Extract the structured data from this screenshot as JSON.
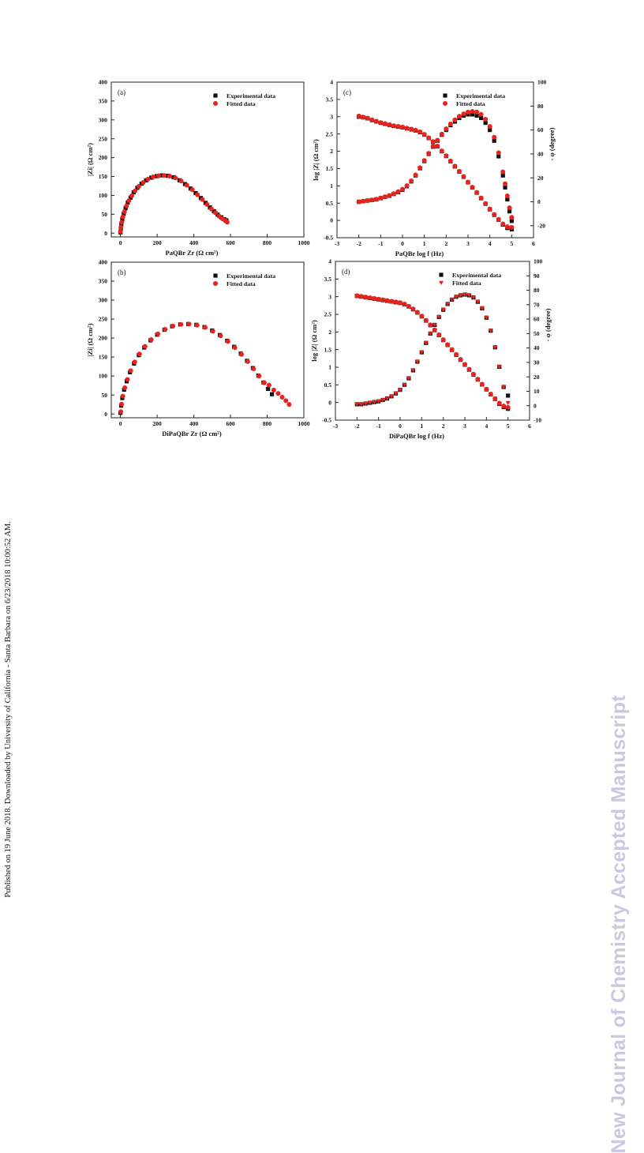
{
  "side_note": "Published on 19 June 2018. Downloaded by University of California - Santa Barbara on 6/23/2018 10:00:52 AM.",
  "watermark": "New Journal of Chemistry Accepted Manuscript",
  "colors": {
    "experimental": "#111111",
    "fitted": "#e8221c",
    "axis": "#222222"
  },
  "chart_data": [
    {
      "panel": "(a)",
      "type": "scatter",
      "x_label_prefix": "PaQBr",
      "xlabel": "Zr (Ω cm²)",
      "ylabel": "|Zi| (Ω cm²)",
      "xlim": [
        -50,
        1000
      ],
      "ylim": [
        -10,
        400
      ],
      "xticks": [
        0,
        200,
        400,
        600,
        800,
        1000
      ],
      "yticks": [
        0,
        50,
        100,
        150,
        200,
        250,
        300,
        350,
        400
      ],
      "legend": {
        "position": "top-right",
        "entries": [
          "Experimental data",
          "Fitted data"
        ]
      },
      "series": [
        {
          "name": "Experimental data",
          "marker": "square",
          "x": [
            0,
            2,
            5,
            10,
            18,
            28,
            40,
            55,
            72,
            92,
            115,
            140,
            168,
            198,
            228,
            258,
            290,
            322,
            352,
            382,
            410,
            438,
            464,
            488,
            510,
            530,
            550,
            566,
            578
          ],
          "y": [
            2,
            12,
            24,
            37,
            51,
            66,
            81,
            94,
            108,
            120,
            131,
            140,
            147,
            151,
            153,
            152,
            148,
            140,
            130,
            118,
            106,
            93,
            80,
            68,
            58,
            49,
            42,
            37,
            34
          ]
        },
        {
          "name": "Fitted data",
          "marker": "circle",
          "x": [
            0,
            3,
            7,
            13,
            22,
            33,
            46,
            62,
            80,
            100,
            124,
            150,
            178,
            208,
            238,
            268,
            300,
            331,
            362,
            392,
            420,
            447,
            472,
            496,
            518,
            538,
            556,
            572,
            582
          ],
          "y": [
            4,
            16,
            29,
            43,
            57,
            72,
            86,
            99,
            112,
            124,
            134,
            143,
            149,
            152,
            153,
            151,
            146,
            138,
            127,
            115,
            102,
            89,
            76,
            64,
            54,
            45,
            38,
            33,
            29
          ]
        }
      ]
    },
    {
      "panel": "(b)",
      "type": "scatter",
      "x_label_prefix": "DiPaQBr",
      "xlabel": "Zr (Ω cm²)",
      "ylabel": "|Zi| (Ω cm²)",
      "xlim": [
        -50,
        1000
      ],
      "ylim": [
        -10,
        400
      ],
      "xticks": [
        0,
        200,
        400,
        600,
        800,
        1000
      ],
      "yticks": [
        0,
        50,
        100,
        150,
        200,
        250,
        300,
        350,
        400
      ],
      "legend": {
        "position": "top-right",
        "entries": [
          "Experimental data",
          "Fitted data"
        ]
      },
      "series": [
        {
          "name": "Experimental data",
          "marker": "square",
          "x": [
            0,
            4,
            10,
            20,
            34,
            52,
            74,
            100,
            130,
            164,
            200,
            240,
            282,
            326,
            370,
            414,
            458,
            500,
            542,
            582,
            620,
            656,
            690,
            722,
            752,
            780,
            805,
            826
          ],
          "y": [
            3,
            22,
            42,
            64,
            86,
            110,
            133,
            155,
            175,
            194,
            209,
            222,
            231,
            236,
            237,
            235,
            229,
            220,
            208,
            193,
            177,
            159,
            140,
            121,
            101,
            83,
            66,
            52
          ]
        },
        {
          "name": "Fitted data",
          "marker": "circle",
          "x": [
            2,
            6,
            13,
            24,
            38,
            56,
            78,
            104,
            134,
            168,
            204,
            244,
            286,
            330,
            374,
            418,
            462,
            504,
            546,
            586,
            624,
            660,
            694,
            726,
            756,
            784,
            810,
            836,
            860,
            882,
            902,
            920
          ],
          "y": [
            6,
            26,
            47,
            69,
            91,
            114,
            137,
            158,
            178,
            196,
            211,
            223,
            232,
            236,
            237,
            234,
            228,
            218,
            206,
            191,
            175,
            157,
            138,
            119,
            100,
            82,
            76,
            63,
            54,
            44,
            35,
            25
          ]
        }
      ]
    },
    {
      "panel": "(c)",
      "type": "scatter",
      "x_label_prefix": "PaQBr",
      "xlabel": "log f (Hz)",
      "ylabel": "log |Z| (Ω cm²)",
      "y2label": "- φ (degree)",
      "xlim": [
        -3,
        6
      ],
      "ylim": [
        -0.5,
        4.0
      ],
      "y2lim": [
        -30,
        100
      ],
      "xticks": [
        -3,
        -2,
        -1,
        0,
        1,
        2,
        3,
        4,
        5,
        6
      ],
      "yticks": [
        -0.5,
        0.0,
        0.5,
        1.0,
        1.5,
        2.0,
        2.5,
        3.0,
        3.5,
        4.0
      ],
      "y2ticks": [
        -20,
        0,
        20,
        40,
        60,
        80,
        100
      ],
      "legend": {
        "position": "top-right",
        "entries": [
          "Experimental data",
          "Fitted data"
        ]
      },
      "series": [
        {
          "name": "Experimental data",
          "axis": "left",
          "marker": "square",
          "x": [
            -2.0,
            -1.8,
            -1.6,
            -1.4,
            -1.2,
            -1.0,
            -0.8,
            -0.6,
            -0.4,
            -0.2,
            0.0,
            0.2,
            0.4,
            0.6,
            0.8,
            1.0,
            1.2,
            1.4,
            1.6,
            1.8,
            2.0,
            2.2,
            2.4,
            2.6,
            2.8,
            3.0,
            3.2,
            3.4,
            3.6,
            3.8,
            4.0,
            4.2,
            4.4,
            4.6,
            4.8,
            5.0
          ],
          "y": [
            3.0,
            2.98,
            2.95,
            2.9,
            2.86,
            2.82,
            2.79,
            2.76,
            2.73,
            2.71,
            2.69,
            2.66,
            2.63,
            2.6,
            2.55,
            2.48,
            2.38,
            2.27,
            2.14,
            2.0,
            1.86,
            1.71,
            1.56,
            1.41,
            1.26,
            1.1,
            0.95,
            0.8,
            0.64,
            0.48,
            0.32,
            0.16,
            0.02,
            -0.12,
            -0.22,
            -0.26
          ]
        },
        {
          "name": "Fitted data",
          "axis": "left",
          "marker": "circle",
          "x": [
            -2.0,
            -1.8,
            -1.6,
            -1.4,
            -1.2,
            -1.0,
            -0.8,
            -0.6,
            -0.4,
            -0.2,
            0.0,
            0.2,
            0.4,
            0.6,
            0.8,
            1.0,
            1.2,
            1.4,
            1.6,
            1.8,
            2.0,
            2.2,
            2.4,
            2.6,
            2.8,
            3.0,
            3.2,
            3.4,
            3.6,
            3.8,
            4.0,
            4.2,
            4.4,
            4.6,
            4.8,
            5.0
          ],
          "y": [
            3.02,
            2.99,
            2.96,
            2.91,
            2.87,
            2.83,
            2.8,
            2.77,
            2.74,
            2.72,
            2.7,
            2.67,
            2.64,
            2.61,
            2.56,
            2.49,
            2.39,
            2.28,
            2.15,
            2.01,
            1.87,
            1.72,
            1.57,
            1.42,
            1.27,
            1.11,
            0.96,
            0.81,
            0.65,
            0.49,
            0.33,
            0.17,
            0.03,
            -0.1,
            -0.18,
            -0.2
          ]
        },
        {
          "name": "Experimental data",
          "axis": "right",
          "marker": "square",
          "x": [
            -2.0,
            -1.8,
            -1.6,
            -1.4,
            -1.2,
            -1.0,
            -0.8,
            -0.6,
            -0.4,
            -0.2,
            0.0,
            0.2,
            0.4,
            0.6,
            0.8,
            1.0,
            1.2,
            1.4,
            1.6,
            1.8,
            2.0,
            2.2,
            2.4,
            2.6,
            2.8,
            3.0,
            3.2,
            3.4,
            3.6,
            3.8,
            4.0,
            4.2,
            4.4,
            4.6,
            4.7,
            4.8,
            4.9,
            5.0
          ],
          "y": [
            0,
            0.5,
            1,
            1.5,
            2,
            3,
            4,
            5,
            6.5,
            8,
            10,
            13,
            17,
            22,
            28,
            34,
            40,
            46,
            51,
            56,
            60,
            64,
            67,
            70,
            72,
            73,
            73,
            72,
            70,
            66,
            60,
            51,
            38,
            22,
            12,
            2,
            -8,
            -16
          ]
        },
        {
          "name": "Fitted data",
          "axis": "right",
          "marker": "circle",
          "x": [
            -2.0,
            -1.8,
            -1.6,
            -1.4,
            -1.2,
            -1.0,
            -0.8,
            -0.6,
            -0.4,
            -0.2,
            0.0,
            0.2,
            0.4,
            0.6,
            0.8,
            1.0,
            1.2,
            1.4,
            1.6,
            1.8,
            2.0,
            2.2,
            2.4,
            2.6,
            2.8,
            3.0,
            3.2,
            3.4,
            3.6,
            3.8,
            4.0,
            4.2,
            4.4,
            4.6,
            4.7,
            4.8,
            4.9,
            5.0
          ],
          "y": [
            0,
            0.5,
            1,
            1.5,
            2.2,
            3.2,
            4.2,
            5.3,
            6.8,
            8.5,
            10.5,
            13.5,
            17.5,
            22.5,
            28.5,
            34.5,
            40.5,
            46.5,
            51.5,
            56.5,
            61,
            65,
            68.5,
            71.5,
            73.5,
            75,
            75.5,
            75,
            73,
            69,
            63,
            54,
            41,
            25,
            15,
            5,
            -5,
            -13
          ]
        }
      ]
    },
    {
      "panel": "(d)",
      "type": "scatter",
      "x_label_prefix": "DiPaQBr",
      "xlabel": "log f (Hz)",
      "ylabel": "log |Z| (Ω cm²)",
      "y2label": "- φ (degree)",
      "xlim": [
        -3,
        6
      ],
      "ylim": [
        -0.5,
        4.0
      ],
      "y2lim": [
        -10,
        100
      ],
      "xticks": [
        -3,
        -2,
        -1,
        0,
        1,
        2,
        3,
        4,
        5,
        6
      ],
      "yticks": [
        -0.5,
        0.0,
        0.5,
        1.0,
        1.5,
        2.0,
        2.5,
        3.0,
        3.5,
        4.0
      ],
      "y2ticks": [
        -10,
        0,
        10,
        20,
        30,
        40,
        50,
        60,
        70,
        80,
        90,
        100
      ],
      "legend": {
        "position": "top-right",
        "entries": [
          "Experimental data",
          "Fitted data"
        ]
      },
      "series": [
        {
          "name": "Experimental data",
          "axis": "left",
          "marker": "square",
          "x": [
            -2.0,
            -1.8,
            -1.6,
            -1.4,
            -1.2,
            -1.0,
            -0.8,
            -0.6,
            -0.4,
            -0.2,
            0.0,
            0.2,
            0.4,
            0.6,
            0.8,
            1.0,
            1.2,
            1.4,
            1.6,
            1.8,
            2.0,
            2.2,
            2.4,
            2.6,
            2.8,
            3.0,
            3.2,
            3.4,
            3.6,
            3.8,
            4.0,
            4.2,
            4.4,
            4.6,
            4.8,
            5.0
          ],
          "y": [
            3.02,
            3.0,
            2.98,
            2.96,
            2.94,
            2.92,
            2.9,
            2.88,
            2.86,
            2.84,
            2.82,
            2.78,
            2.72,
            2.64,
            2.55,
            2.44,
            2.32,
            2.19,
            2.05,
            1.91,
            1.77,
            1.63,
            1.49,
            1.35,
            1.21,
            1.07,
            0.93,
            0.79,
            0.65,
            0.51,
            0.37,
            0.23,
            0.1,
            -0.04,
            -0.13,
            -0.18
          ]
        },
        {
          "name": "Fitted data",
          "axis": "left",
          "marker": "circle",
          "x": [
            -2.0,
            -1.8,
            -1.6,
            -1.4,
            -1.2,
            -1.0,
            -0.8,
            -0.6,
            -0.4,
            -0.2,
            0.0,
            0.2,
            0.4,
            0.6,
            0.8,
            1.0,
            1.2,
            1.4,
            1.6,
            1.8,
            2.0,
            2.2,
            2.4,
            2.6,
            2.8,
            3.0,
            3.2,
            3.4,
            3.6,
            3.8,
            4.0,
            4.2,
            4.4,
            4.6,
            4.8,
            5.0
          ],
          "y": [
            3.03,
            3.01,
            2.99,
            2.97,
            2.95,
            2.93,
            2.91,
            2.89,
            2.87,
            2.85,
            2.83,
            2.79,
            2.73,
            2.65,
            2.56,
            2.45,
            2.33,
            2.2,
            2.06,
            1.92,
            1.78,
            1.64,
            1.5,
            1.36,
            1.22,
            1.08,
            0.94,
            0.8,
            0.66,
            0.52,
            0.38,
            0.24,
            0.11,
            -0.02,
            -0.1,
            -0.14
          ]
        },
        {
          "name": "Experimental data",
          "axis": "right",
          "marker": "square",
          "x": [
            -2.0,
            -1.8,
            -1.6,
            -1.4,
            -1.2,
            -1.0,
            -0.8,
            -0.6,
            -0.4,
            -0.2,
            0.0,
            0.2,
            0.4,
            0.6,
            0.8,
            1.0,
            1.2,
            1.4,
            1.6,
            1.8,
            2.0,
            2.2,
            2.4,
            2.6,
            2.8,
            3.0,
            3.2,
            3.4,
            3.6,
            3.8,
            4.0,
            4.2,
            4.4,
            4.6,
            4.8,
            5.0
          ],
          "y": [
            1,
            1,
            1.5,
            2,
            2.5,
            3,
            4,
            5,
            6.5,
            8.5,
            11,
            14.5,
            19,
            24.5,
            30.5,
            37,
            43.5,
            50,
            56,
            61.5,
            66.5,
            70.5,
            73.5,
            75.5,
            76.5,
            77,
            76.5,
            75,
            72,
            67.5,
            61,
            52,
            40.5,
            27,
            13,
            7
          ]
        },
        {
          "name": "Fitted data",
          "axis": "right",
          "marker": "triangle",
          "x": [
            -2.0,
            -1.8,
            -1.6,
            -1.4,
            -1.2,
            -1.0,
            -0.8,
            -0.6,
            -0.4,
            -0.2,
            0.0,
            0.2,
            0.4,
            0.6,
            0.8,
            1.0,
            1.2,
            1.4,
            1.6,
            1.8,
            2.0,
            2.2,
            2.4,
            2.6,
            2.8,
            3.0,
            3.2,
            3.4,
            3.6,
            3.8,
            4.0,
            4.2,
            4.4,
            4.6,
            4.8,
            5.0
          ],
          "y": [
            1,
            1,
            1.5,
            2,
            2.5,
            3,
            4,
            5,
            6.5,
            8.5,
            11,
            14.5,
            19,
            24.5,
            30.5,
            37,
            43.5,
            50,
            56,
            61.5,
            66.5,
            70.5,
            73.5,
            75.5,
            76.5,
            77,
            76.5,
            75,
            72,
            67.5,
            61,
            52,
            40.5,
            27,
            13,
            2
          ]
        }
      ]
    }
  ]
}
